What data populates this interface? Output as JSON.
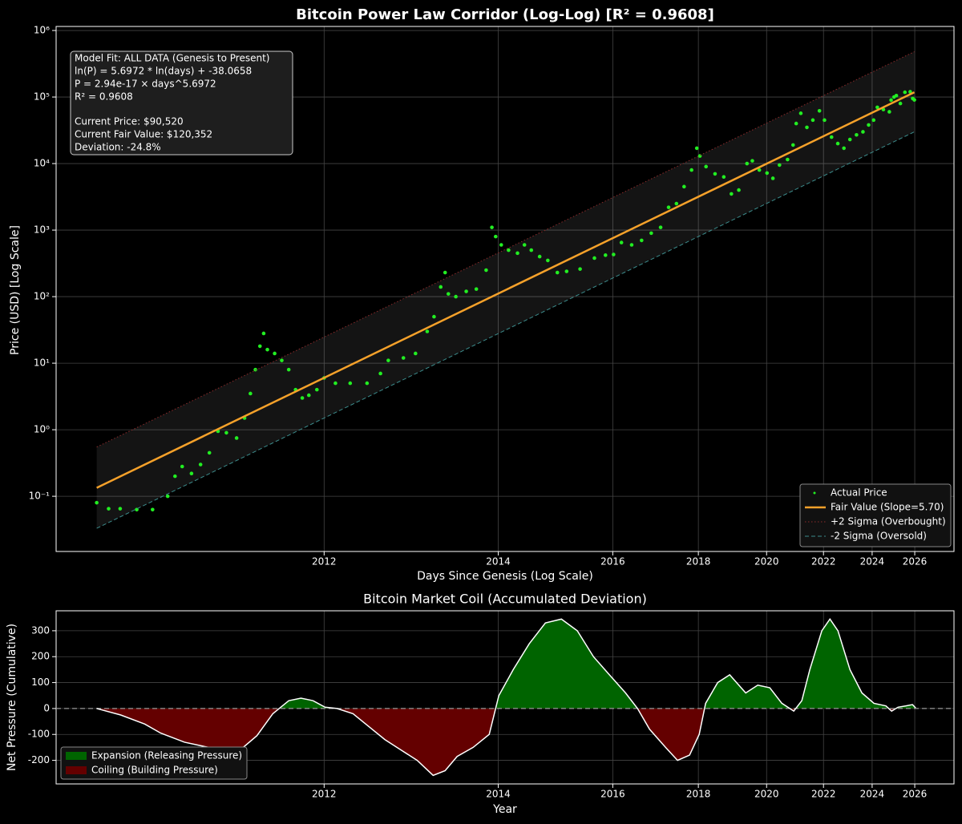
{
  "chart_data": [
    {
      "type": "scatter",
      "title": "Bitcoin Power Law Corridor (Log-Log) [R² = 0.9608]",
      "x_label": "Days Since Genesis (Log Scale)",
      "y_label": "Price (USD) [Log Scale]",
      "log_x": true,
      "log_y": true,
      "grid": true,
      "legend": "lower right",
      "xlim": [
        497,
        6966
      ],
      "ylim": [
        0.0148,
        1150000
      ],
      "xticks": [
        {
          "value": 1093,
          "label": "2012"
        },
        {
          "value": 1824,
          "label": "2014"
        },
        {
          "value": 2554,
          "label": "2016"
        },
        {
          "value": 3285,
          "label": "2018"
        },
        {
          "value": 4015,
          "label": "2020"
        },
        {
          "value": 4746,
          "label": "2022"
        },
        {
          "value": 5476,
          "label": "2024"
        },
        {
          "value": 6207,
          "label": "2026"
        }
      ],
      "yticks": [
        {
          "value": 0.1,
          "label": "10⁻¹"
        },
        {
          "value": 1,
          "label": "10⁰"
        },
        {
          "value": 10,
          "label": "10¹"
        },
        {
          "value": 100,
          "label": "10²"
        },
        {
          "value": 1000,
          "label": "10³"
        },
        {
          "value": 10000,
          "label": "10⁴"
        },
        {
          "value": 100000,
          "label": "10⁵"
        },
        {
          "value": 1000000,
          "label": "10⁶"
        }
      ],
      "annotation": {
        "model": [
          "Model Fit: ALL DATA (Genesis to Present)",
          "ln(P) = 5.6972 * ln(days) + -38.0658",
          "P = 2.94e-17 × days^5.6972",
          "R² = 0.9608"
        ],
        "current": [
          "Current Price: $90,520",
          "Current Fair Value: $120,352",
          "Deviation: -24.8%"
        ]
      },
      "series": [
        {
          "name": "Actual Price",
          "style": "points",
          "color": "#22ee22",
          "x": [
            560,
            580,
            600,
            630,
            660,
            690,
            705,
            720,
            740,
            760,
            780,
            800,
            820,
            845,
            865,
            880,
            893,
            905,
            915,
            925,
            945,
            965,
            985,
            1005,
            1025,
            1045,
            1070,
            1093,
            1130,
            1180,
            1240,
            1290,
            1320,
            1380,
            1430,
            1480,
            1510,
            1540,
            1560,
            1575,
            1610,
            1660,
            1710,
            1760,
            1790,
            1810,
            1840,
            1880,
            1930,
            1970,
            2010,
            2060,
            2110,
            2170,
            2230,
            2320,
            2420,
            2500,
            2560,
            2620,
            2700,
            2780,
            2860,
            2940,
            3010,
            3080,
            3150,
            3220,
            3270,
            3300,
            3360,
            3450,
            3540,
            3620,
            3700,
            3790,
            3850,
            3930,
            4020,
            4090,
            4170,
            4270,
            4340,
            4380,
            4440,
            4520,
            4600,
            4690,
            4760,
            4860,
            4950,
            5040,
            5130,
            5230,
            5330,
            5420,
            5500,
            5560,
            5660,
            5760,
            5790,
            5840,
            5880,
            5950,
            6030,
            6125,
            6170,
            6200
          ],
          "values": [
            0.08,
            0.065,
            0.065,
            0.063,
            0.063,
            0.1,
            0.2,
            0.28,
            0.22,
            0.3,
            0.45,
            0.95,
            0.9,
            0.75,
            1.5,
            3.5,
            8,
            18,
            28,
            16,
            14,
            11,
            8,
            4,
            3,
            3.3,
            4,
            6,
            5,
            5,
            5,
            7,
            11,
            12,
            14,
            30,
            50,
            140,
            230,
            110,
            100,
            120,
            130,
            250,
            1100,
            800,
            600,
            500,
            450,
            600,
            500,
            400,
            350,
            230,
            240,
            260,
            380,
            420,
            430,
            650,
            600,
            700,
            900,
            1100,
            2200,
            2500,
            4500,
            8000,
            17000,
            13000,
            9000,
            7000,
            6300,
            3500,
            4000,
            10000,
            11000,
            8000,
            7200,
            6000,
            9500,
            11500,
            19000,
            40000,
            57000,
            35000,
            45000,
            62000,
            45000,
            25000,
            20000,
            17000,
            23000,
            27000,
            30000,
            38000,
            45000,
            70000,
            65000,
            60000,
            90000,
            100000,
            105000,
            80000,
            118000,
            120000,
            95000,
            90520
          ]
        },
        {
          "name": "Fair Value (Slope=5.70)",
          "style": "solid",
          "color": "#f5a12a",
          "x": [
            560,
            6200
          ],
          "values": [
            0.134,
            118000
          ]
        },
        {
          "name": "+2 Sigma (Overbought)",
          "style": "dotted",
          "color": "#8a2a2a",
          "x": [
            560,
            6200
          ],
          "values": [
            0.55,
            480000
          ]
        },
        {
          "name": "-2 Sigma (Oversold)",
          "style": "dashed",
          "color": "#3c8c8c",
          "x": [
            560,
            6200
          ],
          "values": [
            0.033,
            30000
          ]
        }
      ]
    },
    {
      "type": "area",
      "title": "Bitcoin Market Coil (Accumulated Deviation)",
      "x_label": "Year",
      "y_label": "Net Pressure (Cumulative)",
      "log_x": true,
      "grid": true,
      "legend": "lower left",
      "color": "#ffffff",
      "xlim": [
        497,
        6966
      ],
      "ylim": [
        -291,
        377
      ],
      "xticks": [
        {
          "value": 1093,
          "label": "2012"
        },
        {
          "value": 1824,
          "label": "2014"
        },
        {
          "value": 2554,
          "label": "2016"
        },
        {
          "value": 3285,
          "label": "2018"
        },
        {
          "value": 4015,
          "label": "2020"
        },
        {
          "value": 4746,
          "label": "2022"
        },
        {
          "value": 5476,
          "label": "2024"
        },
        {
          "value": 6207,
          "label": "2026"
        }
      ],
      "yticks": [
        -200,
        -100,
        0,
        100,
        200,
        300
      ],
      "fills": [
        {
          "name": "Expansion (Releasing Pressure)",
          "color": "#006400"
        },
        {
          "name": "Coiling (Building Pressure)",
          "color": "#640000"
        }
      ],
      "x": [
        560,
        601,
        645,
        676,
        725,
        778,
        835,
        897,
        940,
        985,
        1021,
        1058,
        1096,
        1135,
        1190,
        1247,
        1307,
        1370,
        1437,
        1506,
        1560,
        1616,
        1694,
        1776,
        1827,
        1906,
        1998,
        2095,
        2196,
        2301,
        2413,
        2529,
        2652,
        2747,
        2846,
        2983,
        3090,
        3201,
        3293,
        3356,
        3477,
        3602,
        3776,
        3912,
        4053,
        4199,
        4349,
        4453,
        4559,
        4723,
        4837,
        4952,
        5130,
        5314,
        5505,
        5703,
        5799,
        5909,
        6050,
        6166,
        6224
      ],
      "values": [
        0,
        -25,
        -60,
        -95,
        -130,
        -150,
        -185,
        -105,
        -20,
        30,
        40,
        30,
        5,
        0,
        -20,
        -70,
        -120,
        -160,
        -200,
        -258,
        -240,
        -185,
        -150,
        -100,
        50,
        150,
        250,
        330,
        345,
        300,
        200,
        130,
        60,
        0,
        -80,
        -150,
        -200,
        -180,
        -100,
        20,
        100,
        130,
        60,
        90,
        80,
        20,
        -10,
        30,
        150,
        300,
        345,
        300,
        150,
        60,
        20,
        10,
        -10,
        5,
        10,
        15,
        2
      ]
    }
  ]
}
